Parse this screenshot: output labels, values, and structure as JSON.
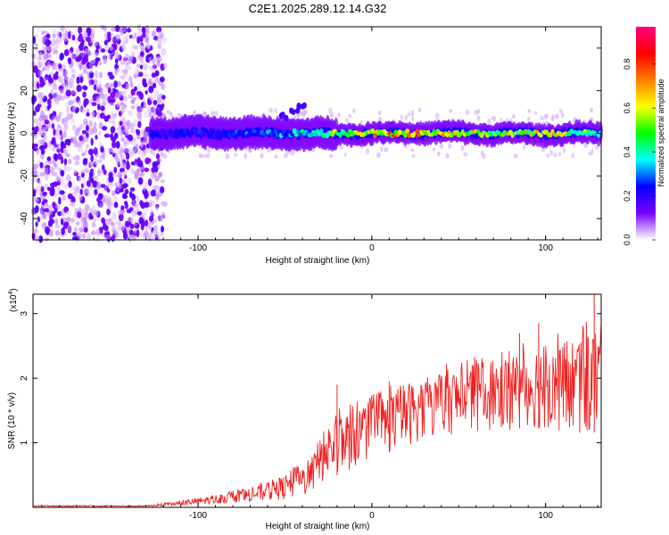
{
  "title": "C2E1.2025.289.12.14.G32",
  "chart_data": [
    {
      "type": "heatmap",
      "name": "spectrogram",
      "xlabel": "Height of straight line (km)",
      "ylabel": "Frequency (Hz)",
      "xlim": [
        -195,
        132
      ],
      "ylim": [
        -50,
        50
      ],
      "xticks": [
        -100,
        0,
        100
      ],
      "yticks": [
        -40,
        -20,
        0,
        20,
        40
      ],
      "colorbar": {
        "label": "Normalized spectral amplitude",
        "range": [
          0,
          0.97
        ],
        "ticks": [
          0.0,
          0.2,
          0.4,
          0.6,
          0.8
        ],
        "tick_labels": [
          "0.0",
          "0.2",
          "0.4",
          "0.6",
          "0.8"
        ],
        "colormap": [
          "#ffffff",
          "#7b00ff",
          "#0000ff",
          "#00ffff",
          "#00ff00",
          "#ffff00",
          "#ff8000",
          "#ff0000",
          "#ff0080"
        ]
      },
      "regions": [
        {
          "x_range": [
            -195,
            -127
          ],
          "description": "scattered low amplitude noise across all frequencies",
          "amplitude": 0.03
        },
        {
          "x_range": [
            -127,
            132
          ],
          "description": "signal band centered near 0 Hz",
          "center_hz": 0,
          "width_hz": 8,
          "peak_amplitude": 0.95
        }
      ],
      "ridge_profile": {
        "x": [
          -127,
          -110,
          -90,
          -70,
          -50,
          -30,
          -10,
          10,
          30,
          50,
          70,
          90,
          110,
          132
        ],
        "peak_amplitude": [
          0.25,
          0.28,
          0.3,
          0.35,
          0.4,
          0.55,
          0.7,
          0.9,
          0.8,
          0.75,
          0.7,
          0.75,
          0.7,
          0.55
        ]
      }
    },
    {
      "type": "line",
      "name": "snr",
      "xlabel": "Height of straight line (km)",
      "ylabel": "SNR (10 * v/v)",
      "y_multiplier": "(x10",
      "y_multiplier_exp": "4",
      "y_multiplier_close": ")",
      "xlim": [
        -195,
        132
      ],
      "ylim": [
        0,
        3.3
      ],
      "xticks": [
        -100,
        0,
        100
      ],
      "yticks": [
        1,
        2,
        3
      ],
      "color": "#ee2222",
      "envelope": {
        "x": [
          -195,
          -130,
          -115,
          -100,
          -85,
          -70,
          -60,
          -50,
          -45,
          -35,
          -30,
          -25,
          -20,
          -15,
          -10,
          -5,
          0,
          10,
          20,
          30,
          40,
          50,
          60,
          70,
          80,
          90,
          100,
          110,
          120,
          125,
          130
        ],
        "base": [
          0.01,
          0.01,
          0.02,
          0.04,
          0.06,
          0.08,
          0.1,
          0.12,
          0.14,
          0.2,
          0.35,
          0.45,
          0.5,
          0.55,
          0.6,
          0.7,
          0.75,
          0.85,
          0.95,
          1.05,
          1.1,
          1.15,
          1.15,
          1.2,
          1.2,
          1.25,
          1.2,
          1.15,
          1.1,
          1.1,
          1.2
        ],
        "upper": [
          0.03,
          0.03,
          0.08,
          0.15,
          0.22,
          0.3,
          0.4,
          0.5,
          0.6,
          0.75,
          1.1,
          1.3,
          1.45,
          1.5,
          1.55,
          1.6,
          1.7,
          1.8,
          1.95,
          2.0,
          2.1,
          2.2,
          2.3,
          2.35,
          2.4,
          2.5,
          2.6,
          2.6,
          2.7,
          2.75,
          2.8
        ]
      },
      "peaks": [
        {
          "x": -20,
          "y": 1.9
        },
        {
          "x": 10,
          "y": 1.95
        },
        {
          "x": 85,
          "y": 2.7
        },
        {
          "x": 96,
          "y": 2.85
        },
        {
          "x": 128,
          "y": 3.3
        }
      ]
    }
  ]
}
